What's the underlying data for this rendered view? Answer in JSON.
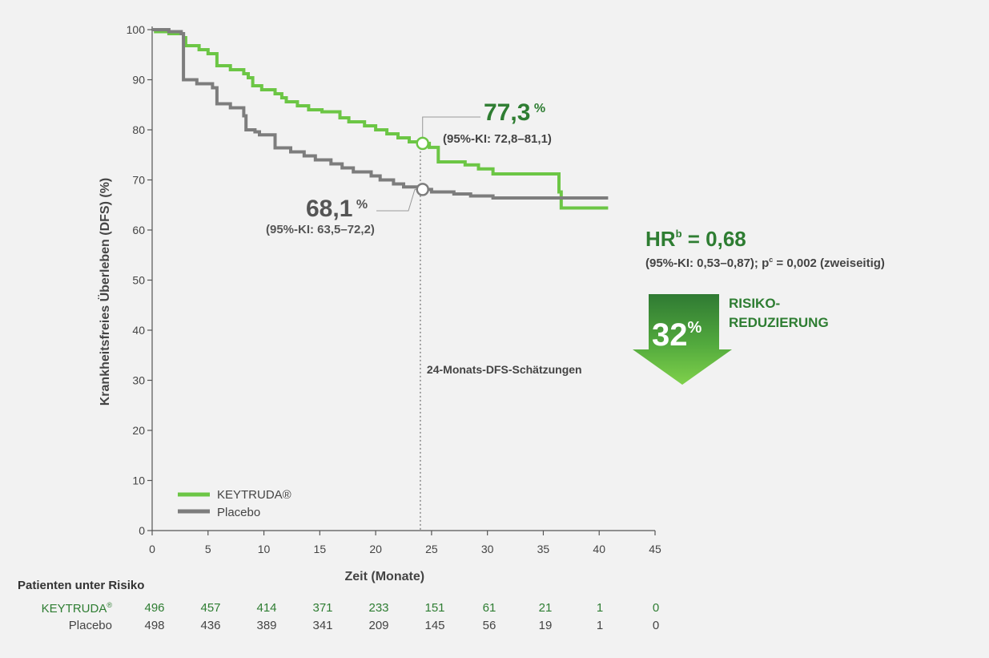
{
  "chart_data": {
    "type": "line",
    "subtype": "kaplan-meier",
    "ylabel": "Krankheitsfreies Überleben (DFS) (%)",
    "xlabel": "Zeit (Monate)",
    "xlim": [
      0,
      45
    ],
    "ylim": [
      0,
      100
    ],
    "xticks": [
      0,
      5,
      10,
      15,
      20,
      25,
      30,
      35,
      40,
      45
    ],
    "yticks": [
      0,
      10,
      20,
      30,
      40,
      50,
      60,
      70,
      80,
      90,
      100
    ],
    "series": [
      {
        "name": "KEYTRUDA",
        "legend_label": "KEYTRUDA®",
        "color": "#6cc645",
        "points": [
          [
            0,
            100
          ],
          [
            0.3,
            99.6
          ],
          [
            1.5,
            99.2
          ],
          [
            2.8,
            98.4
          ],
          [
            3.0,
            96.8
          ],
          [
            4.2,
            96.0
          ],
          [
            5.0,
            95.2
          ],
          [
            5.8,
            92.8
          ],
          [
            7.0,
            92.0
          ],
          [
            8.2,
            91.2
          ],
          [
            8.6,
            90.4
          ],
          [
            9.0,
            88.8
          ],
          [
            9.8,
            88.0
          ],
          [
            11.0,
            87.2
          ],
          [
            11.6,
            86.4
          ],
          [
            12.0,
            85.6
          ],
          [
            13.0,
            84.8
          ],
          [
            14.0,
            84.0
          ],
          [
            15.2,
            83.6
          ],
          [
            16.8,
            82.4
          ],
          [
            17.6,
            81.6
          ],
          [
            19.0,
            80.8
          ],
          [
            20.0,
            80.0
          ],
          [
            21.0,
            79.2
          ],
          [
            22.0,
            78.4
          ],
          [
            23.0,
            77.6
          ],
          [
            24.0,
            77.3
          ],
          [
            24.8,
            76.5
          ],
          [
            25.6,
            73.6
          ],
          [
            28.0,
            73.0
          ],
          [
            29.2,
            72.2
          ],
          [
            30.5,
            71.2
          ],
          [
            34.0,
            71.2
          ],
          [
            36.4,
            67.6
          ],
          [
            36.6,
            64.4
          ],
          [
            40.8,
            64.4
          ]
        ],
        "estimate_24mo": "77,3",
        "estimate_unit": "%",
        "ci": "(95%-KI: 72,8–81,1)"
      },
      {
        "name": "Placebo",
        "legend_label": "Placebo",
        "color": "#7d7d7d",
        "points": [
          [
            0,
            100
          ],
          [
            1.5,
            99.6
          ],
          [
            2.6,
            99.2
          ],
          [
            2.8,
            90.0
          ],
          [
            4.0,
            89.2
          ],
          [
            5.4,
            88.4
          ],
          [
            5.8,
            85.2
          ],
          [
            7.0,
            84.4
          ],
          [
            8.2,
            82.8
          ],
          [
            8.4,
            80.0
          ],
          [
            9.2,
            79.6
          ],
          [
            9.6,
            79.0
          ],
          [
            11.0,
            76.4
          ],
          [
            12.4,
            75.6
          ],
          [
            13.6,
            74.8
          ],
          [
            14.6,
            74.0
          ],
          [
            16.0,
            73.2
          ],
          [
            17.0,
            72.4
          ],
          [
            18.0,
            71.6
          ],
          [
            19.6,
            70.8
          ],
          [
            20.4,
            70.0
          ],
          [
            21.6,
            69.2
          ],
          [
            22.5,
            68.6
          ],
          [
            24.0,
            68.1
          ],
          [
            25.0,
            67.6
          ],
          [
            27.0,
            67.2
          ],
          [
            28.5,
            66.8
          ],
          [
            30.5,
            66.4
          ],
          [
            40.8,
            66.4
          ]
        ],
        "estimate_24mo": "68,1",
        "estimate_unit": "%",
        "ci": "(95%-KI: 63,5–72,2)"
      }
    ],
    "reference_line_x": 24,
    "reference_label": "24-Monats-DFS-Schätzungen",
    "hr_main": "HR",
    "hr_super": "b",
    "hr_value": " = 0,68",
    "hr_ci_pre": "(95%-KI: 0,53–0,87); p",
    "hr_ci_super": "c",
    "hr_ci_post": " = 0,002 (zweiseitig)",
    "risk_reduction_value": "32",
    "risk_reduction_unit": "%",
    "risk_reduction_line1": "RISIKO-",
    "risk_reduction_line2": "REDUZIERUNG",
    "risk_table": {
      "title": "Patienten unter Risiko",
      "times": [
        0,
        5,
        10,
        15,
        20,
        25,
        30,
        35,
        40,
        45
      ],
      "rows": [
        {
          "label": "KEYTRUDA®",
          "values": [
            "496",
            "457",
            "414",
            "371",
            "233",
            "151",
            "61",
            "21",
            "1",
            "0"
          ]
        },
        {
          "label": "Placebo",
          "values": [
            "498",
            "436",
            "389",
            "341",
            "209",
            "145",
            "56",
            "19",
            "1",
            "0"
          ]
        }
      ]
    }
  }
}
